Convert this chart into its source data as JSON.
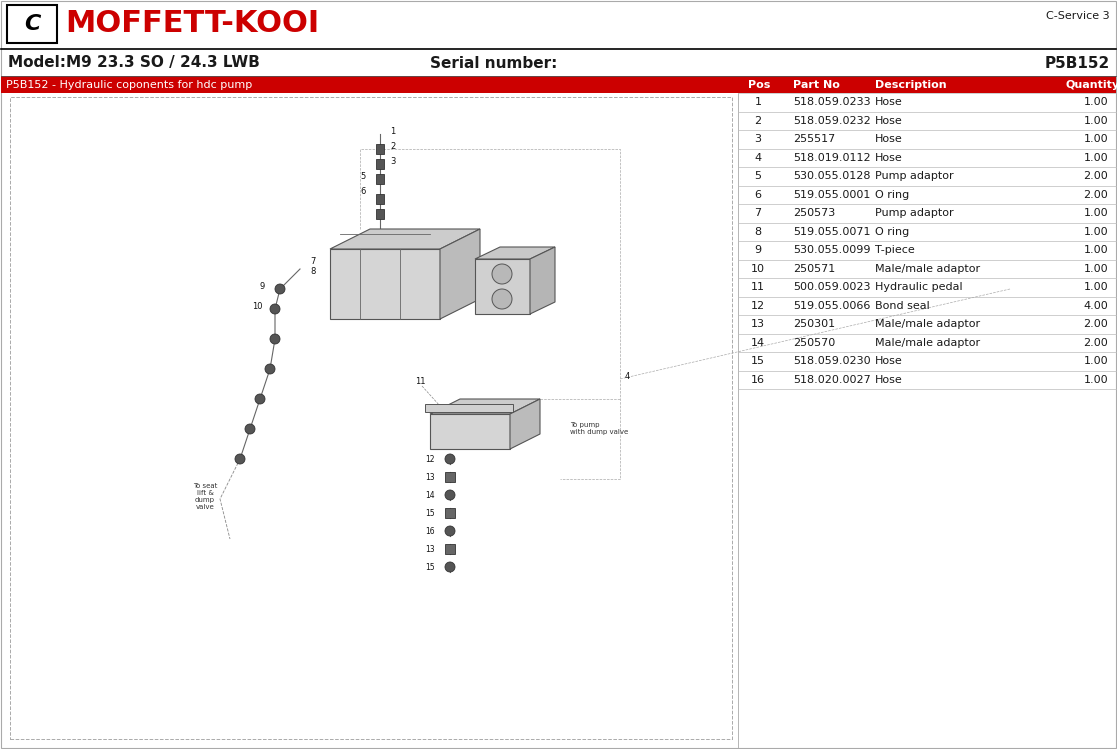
{
  "title_brand": "MOFFETT-KOOI",
  "top_right_text": "C-Service 3",
  "model_label": "Model:M9 23.3 SO / 24.3 LWB",
  "serial_label": "Serial number:",
  "serial_number": "P5B152",
  "section_title": "P5B152 - Hydraulic coponents for hdc pump",
  "table_header": [
    "Pos",
    "Part No",
    "Description",
    "Quantity"
  ],
  "table_data": [
    [
      "1",
      "518.059.0233",
      "Hose",
      "1.00"
    ],
    [
      "2",
      "518.059.0232",
      "Hose",
      "1.00"
    ],
    [
      "3",
      "255517",
      "Hose",
      "1.00"
    ],
    [
      "4",
      "518.019.0112",
      "Hose",
      "1.00"
    ],
    [
      "5",
      "530.055.0128",
      "Pump adaptor",
      "2.00"
    ],
    [
      "6",
      "519.055.0001",
      "O ring",
      "2.00"
    ],
    [
      "7",
      "250573",
      "Pump adaptor",
      "1.00"
    ],
    [
      "8",
      "519.055.0071",
      "O ring",
      "1.00"
    ],
    [
      "9",
      "530.055.0099",
      "T-piece",
      "1.00"
    ],
    [
      "10",
      "250571",
      "Male/male adaptor",
      "1.00"
    ],
    [
      "11",
      "500.059.0023",
      "Hydraulic pedal",
      "1.00"
    ],
    [
      "12",
      "519.055.0066",
      "Bond seal",
      "4.00"
    ],
    [
      "13",
      "250301",
      "Male/male adaptor",
      "2.00"
    ],
    [
      "14",
      "250570",
      "Male/male adaptor",
      "2.00"
    ],
    [
      "15",
      "518.059.0230",
      "Hose",
      "1.00"
    ],
    [
      "16",
      "518.020.0027",
      "Hose",
      "1.00"
    ]
  ],
  "red_color": "#CC0000",
  "bg_white": "#FFFFFF",
  "text_dark": "#1a1a1a",
  "border_color": "#AAAAAA",
  "table_line_color": "#BBBBBB",
  "divider_dark": "#222222"
}
